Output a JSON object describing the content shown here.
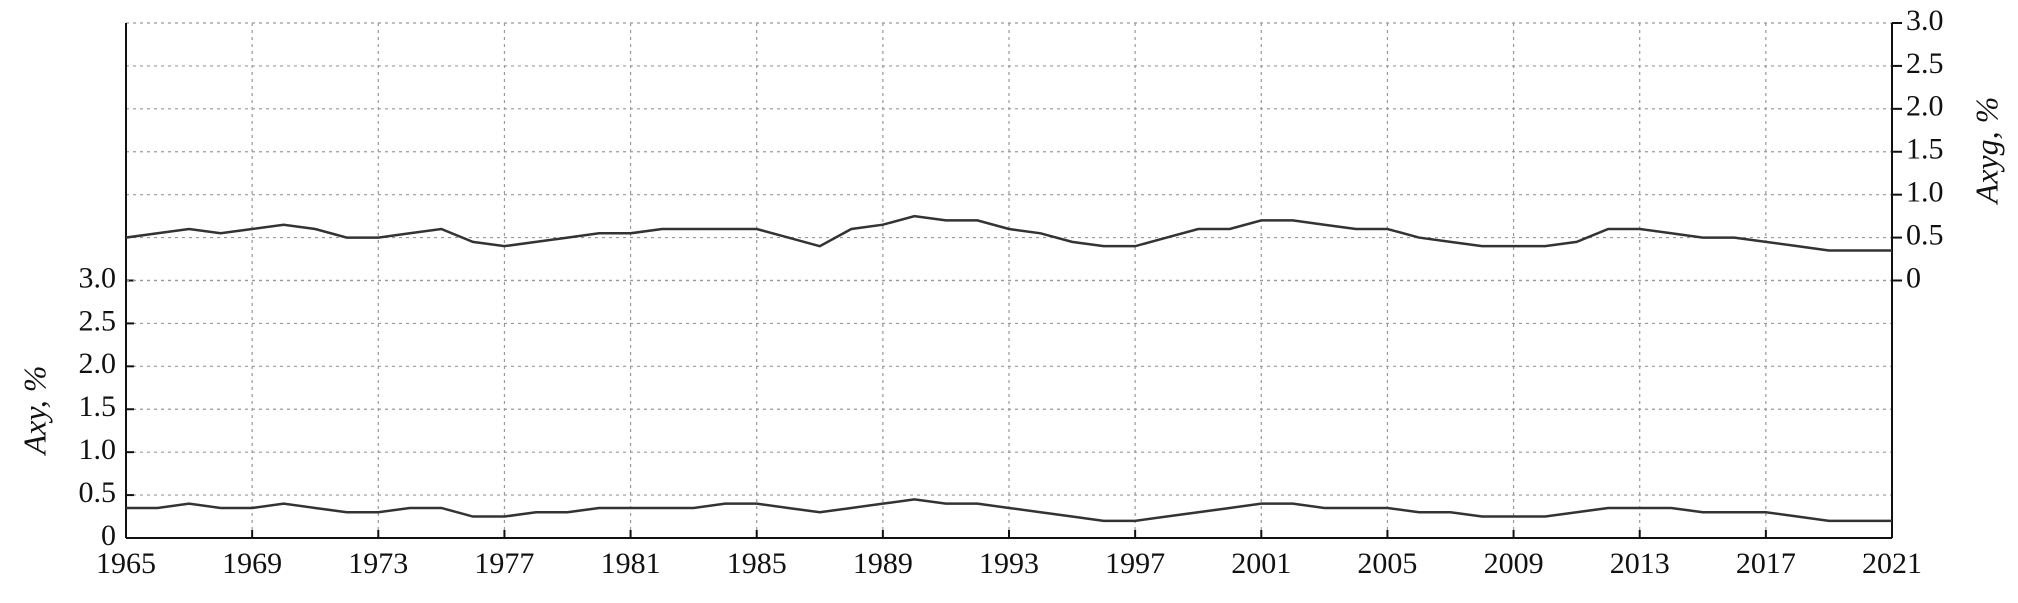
{
  "chart_data": {
    "type": "line",
    "y_label": "Axy, %",
    "y2_label": "Axyg, %",
    "xlim": [
      1965,
      2021
    ],
    "xticks": [
      1965,
      1969,
      1973,
      1977,
      1981,
      1985,
      1989,
      1993,
      1997,
      2001,
      2005,
      2009,
      2013,
      2017,
      2021
    ],
    "ylim": [
      0,
      6
    ],
    "yticks": [
      0,
      0.5,
      {
        "value": 1,
        "label": "1.0"
      },
      1.5,
      {
        "value": 2,
        "label": "2.0"
      },
      2.5,
      {
        "value": 3,
        "label": "3.0"
      }
    ],
    "y2lim": [
      -3,
      3
    ],
    "y2ticks": [
      0,
      0.5,
      {
        "value": 1,
        "label": "1.0"
      },
      1.5,
      {
        "value": 2,
        "label": "2.0"
      },
      2.5,
      {
        "value": 3,
        "label": "3.0"
      }
    ],
    "grid": true,
    "x": [
      1965,
      1966,
      1967,
      1968,
      1969,
      1970,
      1971,
      1972,
      1973,
      1974,
      1975,
      1976,
      1977,
      1978,
      1979,
      1980,
      1981,
      1982,
      1983,
      1984,
      1985,
      1986,
      1987,
      1988,
      1989,
      1990,
      1991,
      1992,
      1993,
      1994,
      1995,
      1996,
      1997,
      1998,
      1999,
      2000,
      2001,
      2002,
      2003,
      2004,
      2005,
      2006,
      2007,
      2008,
      2009,
      2010,
      2011,
      2012,
      2013,
      2014,
      2015,
      2016,
      2017,
      2018,
      2019,
      2020,
      2021
    ],
    "series": [
      {
        "color": "#333333",
        "axis": "y2",
        "values": [
          0.5,
          0.55,
          0.6,
          0.55,
          0.6,
          0.65,
          0.6,
          0.5,
          0.5,
          0.55,
          0.6,
          0.45,
          0.4,
          0.45,
          0.5,
          0.55,
          0.55,
          0.6,
          0.6,
          0.6,
          0.6,
          0.5,
          0.4,
          0.6,
          0.65,
          0.75,
          0.7,
          0.7,
          0.6,
          0.55,
          0.45,
          0.4,
          0.4,
          0.5,
          0.6,
          0.6,
          0.7,
          0.7,
          0.65,
          0.6,
          0.6,
          0.5,
          0.45,
          0.4,
          0.4,
          0.4,
          0.45,
          0.6,
          0.6,
          0.55,
          0.5,
          0.5,
          0.45,
          0.4,
          0.35,
          0.35,
          0.35
        ]
      },
      {
        "color": "#333333",
        "values": [
          0.35,
          0.35,
          0.4,
          0.35,
          0.35,
          0.4,
          0.35,
          0.3,
          0.3,
          0.35,
          0.35,
          0.25,
          0.25,
          0.3,
          0.3,
          0.35,
          0.35,
          0.35,
          0.35,
          0.4,
          0.4,
          0.35,
          0.3,
          0.35,
          0.4,
          0.45,
          0.4,
          0.4,
          0.35,
          0.3,
          0.25,
          0.2,
          0.2,
          0.25,
          0.3,
          0.35,
          0.4,
          0.4,
          0.35,
          0.35,
          0.35,
          0.3,
          0.3,
          0.25,
          0.25,
          0.25,
          0.3,
          0.35,
          0.35,
          0.35,
          0.3,
          0.3,
          0.3,
          0.25,
          0.2,
          0.2,
          0.2
        ]
      }
    ]
  }
}
